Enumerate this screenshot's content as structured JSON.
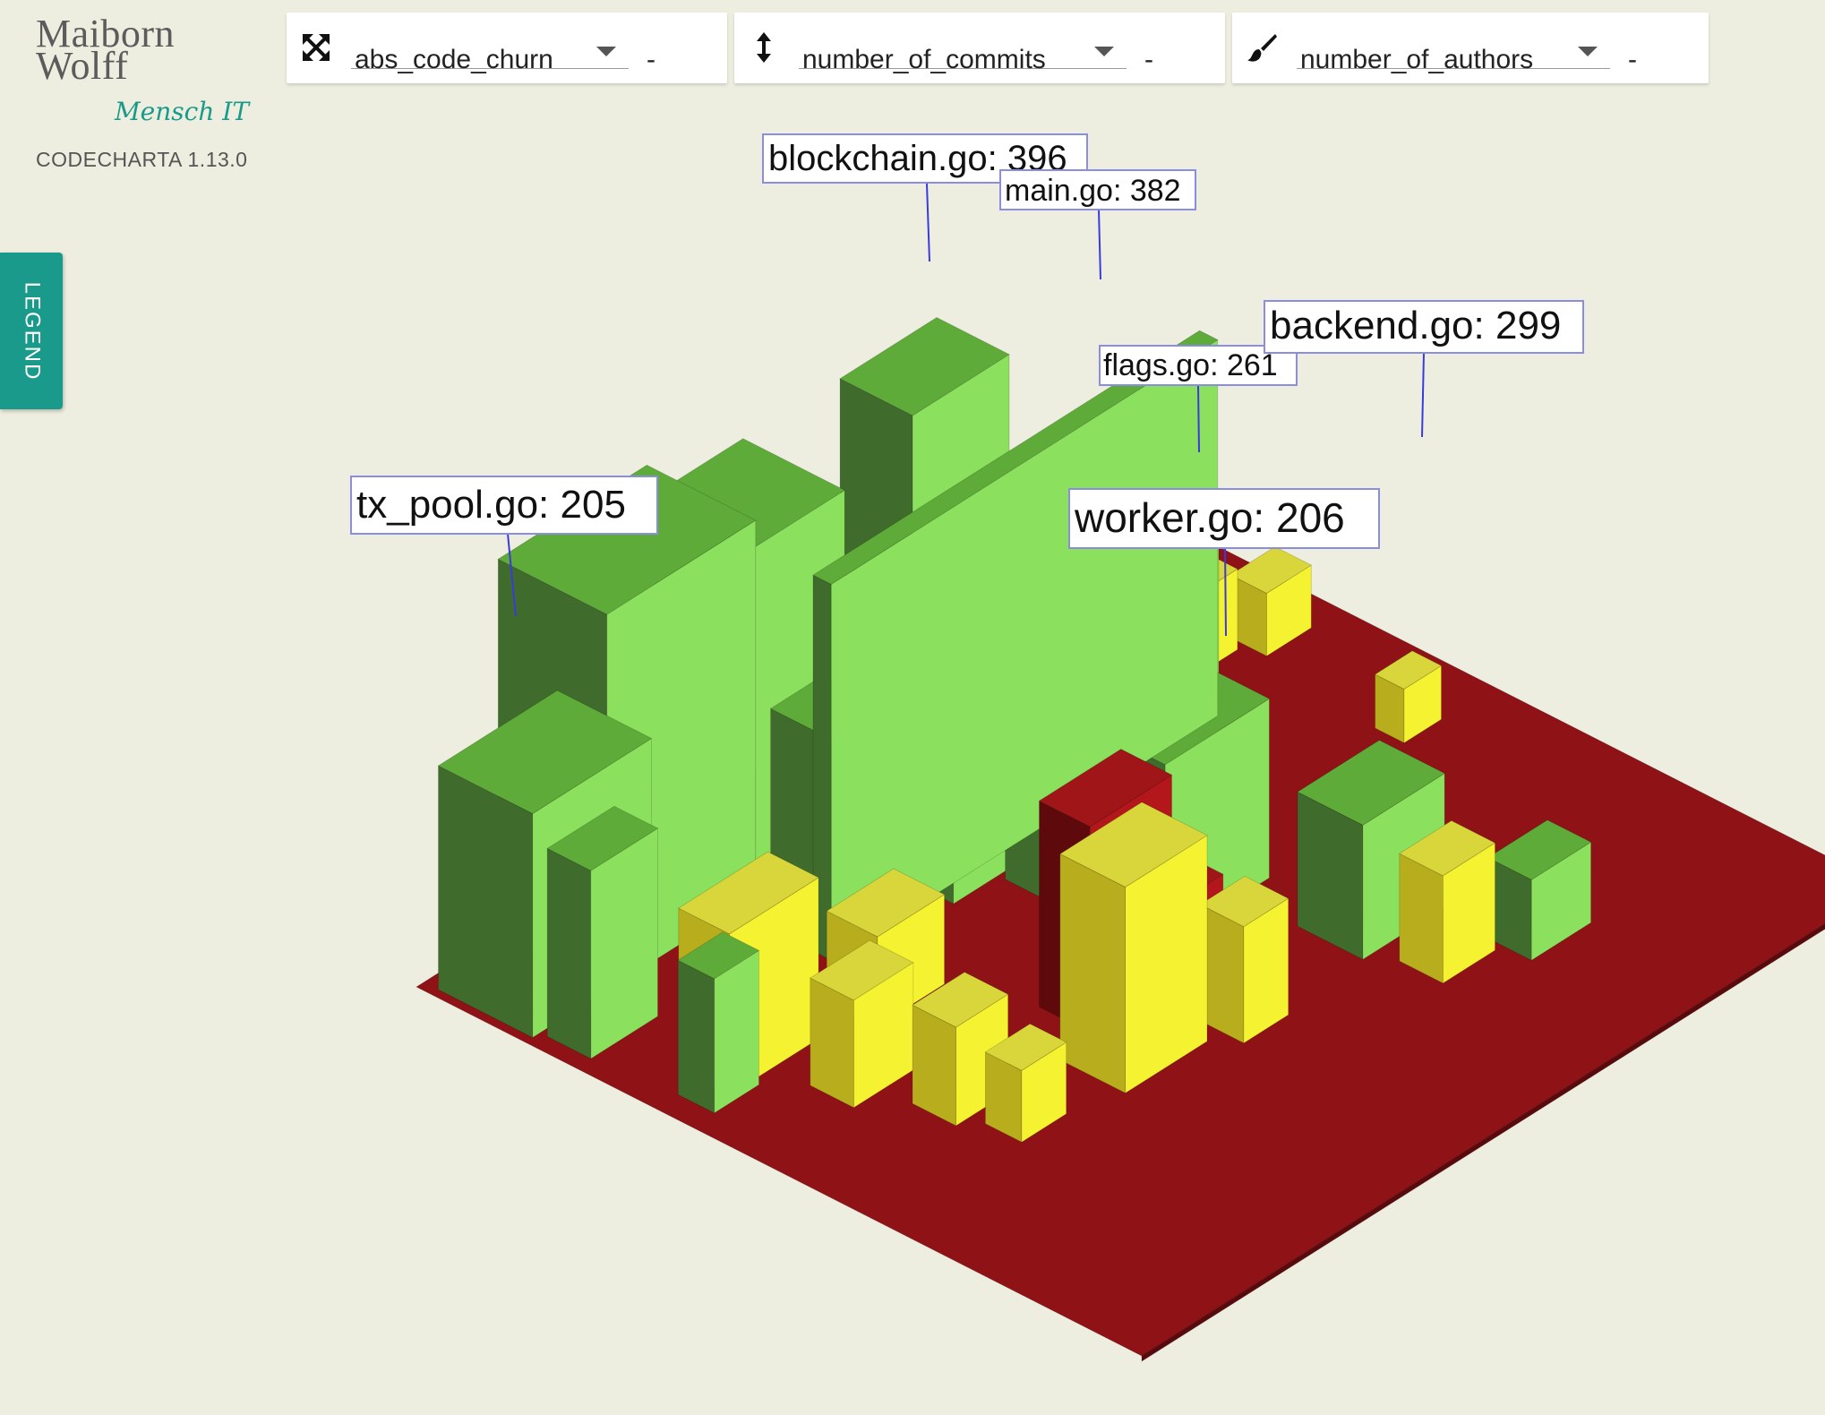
{
  "logo": {
    "line1": "Maiborn",
    "line2": "Wolff",
    "tagline": "Mensch IT"
  },
  "version": "CODECHARTA 1.13.0",
  "legend_tab": {
    "label": "LEGEND"
  },
  "metrics": {
    "area": {
      "icon": "expand-arrows-icon",
      "value": "abs_code_churn",
      "delta": "-"
    },
    "height": {
      "icon": "vertical-arrows-icon",
      "value": "number_of_commits",
      "delta": "-"
    },
    "color": {
      "icon": "paint-brush-icon",
      "value": "number_of_authors",
      "delta": "-"
    }
  },
  "colors": {
    "background": "#edeee0",
    "accent": "#1a9a8a",
    "positive": "#8be05e",
    "neutral": "#f5f232",
    "negative": "#9a1318"
  },
  "labels": [
    {
      "text": "blockchain.go: 396"
    },
    {
      "text": "main.go: 382"
    },
    {
      "text": "flags.go: 261"
    },
    {
      "text": "backend.go: 299"
    },
    {
      "text": "tx_pool.go: 205"
    },
    {
      "text": "worker.go: 206"
    }
  ]
}
